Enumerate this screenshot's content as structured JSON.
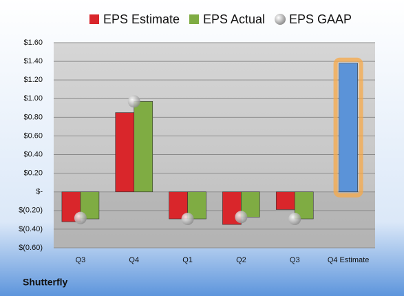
{
  "chart_data": {
    "type": "bar",
    "categories": [
      "Q3",
      "Q4",
      "Q1",
      "Q2",
      "Q3",
      "Q4 Estimate"
    ],
    "series": [
      {
        "name": "EPS Estimate",
        "color": "#d9262b",
        "values": [
          -0.32,
          0.85,
          -0.29,
          -0.35,
          -0.19,
          1.38
        ]
      },
      {
        "name": "EPS Actual",
        "color": "#7fac43",
        "values": [
          -0.29,
          0.97,
          -0.29,
          -0.27,
          -0.29,
          null
        ]
      },
      {
        "name": "EPS GAAP",
        "color": "#b8b8b8",
        "marker": "sphere",
        "values": [
          -0.28,
          0.97,
          -0.29,
          -0.27,
          -0.29,
          null
        ]
      }
    ],
    "highlight": {
      "index": 5,
      "color": "#5b93d8",
      "glow": "#f7a94a"
    },
    "ylim": [
      -0.6,
      1.6
    ],
    "yticks": [
      {
        "value": -0.6,
        "label": "$(0.60)"
      },
      {
        "value": -0.4,
        "label": "$(0.40)"
      },
      {
        "value": -0.2,
        "label": "$(0.20)"
      },
      {
        "value": 0,
        "label": "$-"
      },
      {
        "value": 0.2,
        "label": "$0.20"
      },
      {
        "value": 0.4,
        "label": "$0.40"
      },
      {
        "value": 0.6,
        "label": "$0.60"
      },
      {
        "value": 0.8,
        "label": "$0.80"
      },
      {
        "value": 1.0,
        "label": "$1.00"
      },
      {
        "value": 1.2,
        "label": "$1.20"
      },
      {
        "value": 1.4,
        "label": "$1.40"
      },
      {
        "value": 1.6,
        "label": "$1.60"
      }
    ],
    "grid": true,
    "legend": "top",
    "company": "Shutterfly"
  }
}
